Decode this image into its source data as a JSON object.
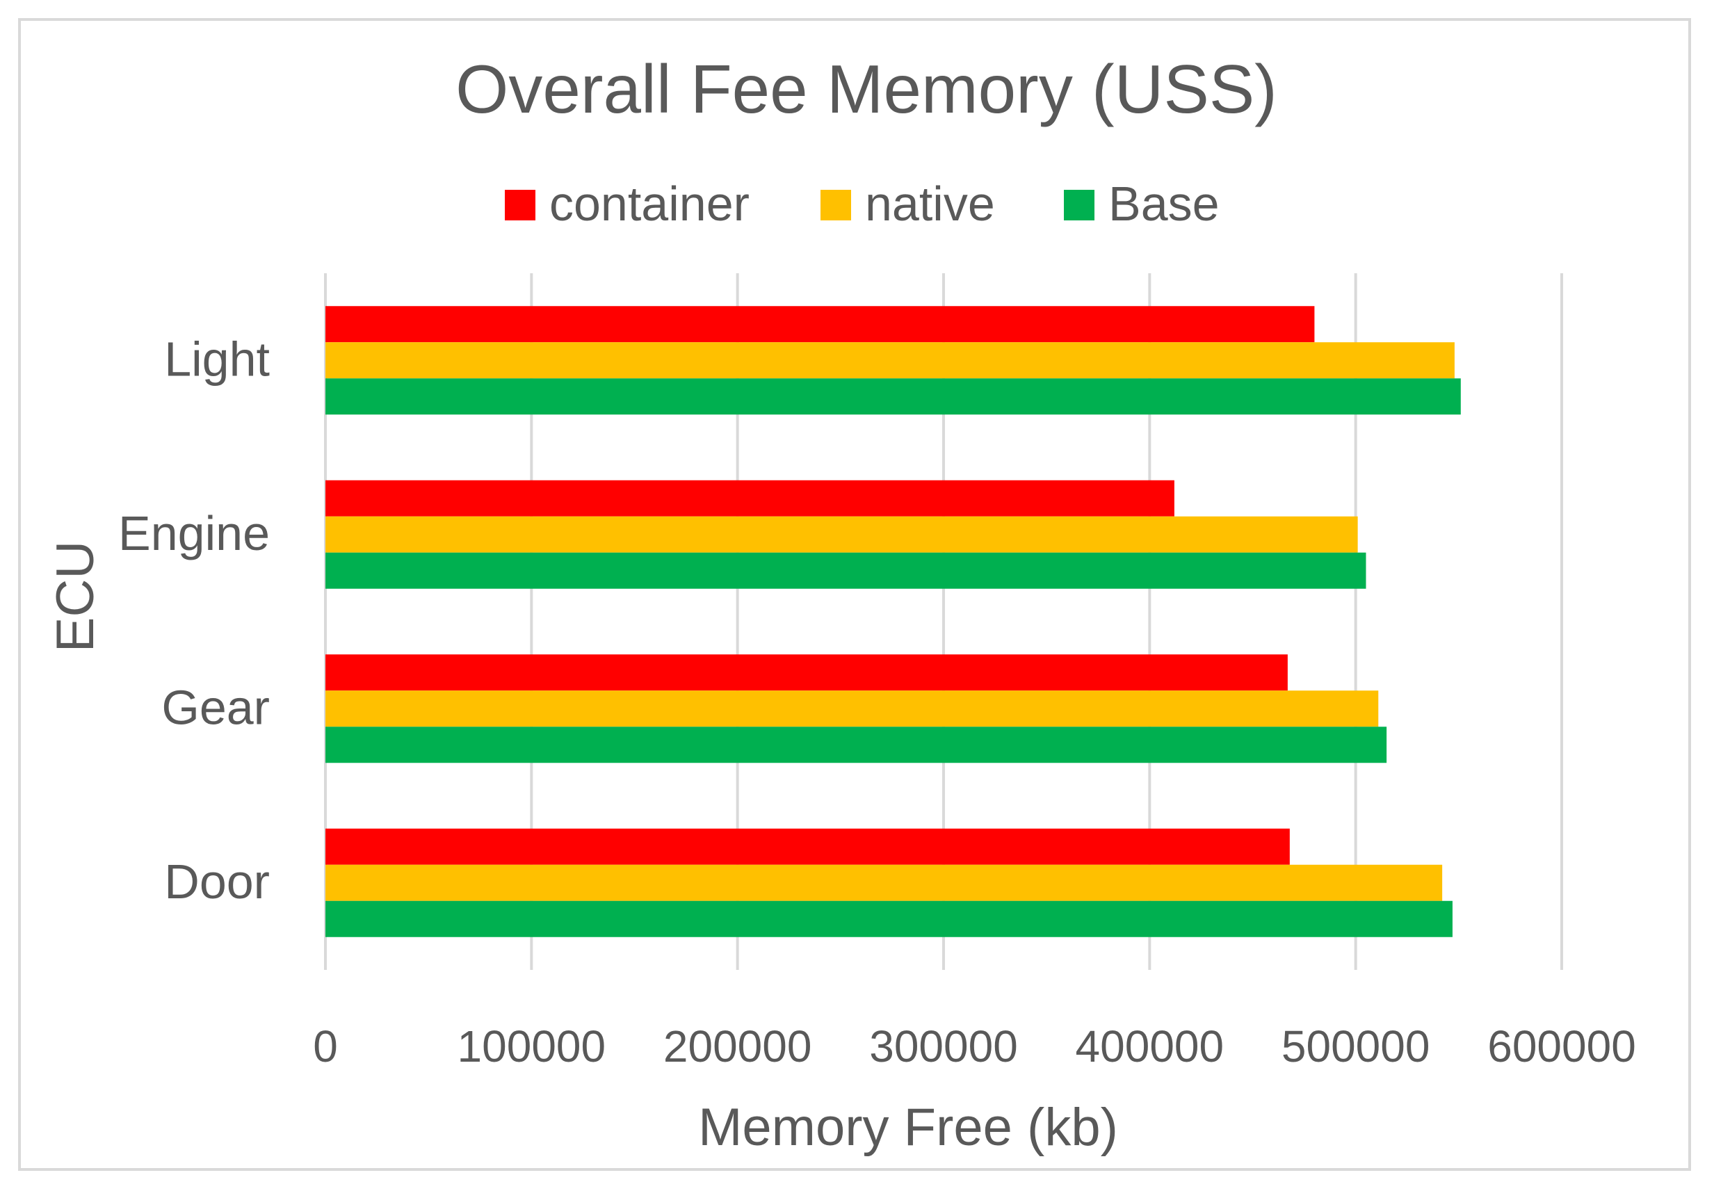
{
  "chart_data": {
    "type": "bar",
    "orientation": "horizontal",
    "title": "Overall Fee Memory (USS)",
    "xlabel": "Memory Free (kb)",
    "ylabel": "ECU",
    "categories": [
      "Light",
      "Engine",
      "Gear",
      "Door"
    ],
    "series": [
      {
        "name": "container",
        "color": "#ff0000",
        "values": [
          480000,
          412000,
          467000,
          468000
        ]
      },
      {
        "name": "native",
        "color": "#ffc000",
        "values": [
          548000,
          501000,
          511000,
          542000
        ]
      },
      {
        "name": "Base",
        "color": "#00b050",
        "values": [
          551000,
          505000,
          515000,
          547000
        ]
      }
    ],
    "xlim": [
      0,
      600000
    ],
    "xticks": [
      "0",
      "100000",
      "200000",
      "300000",
      "400000",
      "500000",
      "600000"
    ],
    "grid": true,
    "legend": "top-center"
  }
}
